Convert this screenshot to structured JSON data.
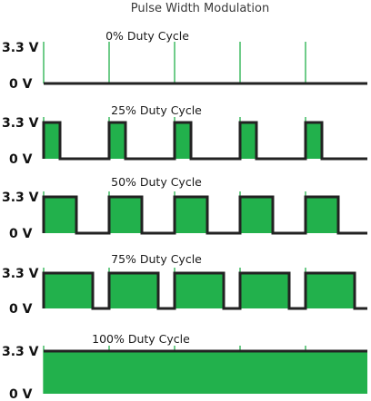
{
  "title": "Pulse Width Modulation",
  "colors": {
    "fill": "#22b14c",
    "line": "#222222",
    "period_marker": "#22b14c"
  },
  "voltage_labels": {
    "high": "3.3 V",
    "low": "0 V"
  },
  "panels": [
    {
      "label": "0% Duty Cycle",
      "duty": 0
    },
    {
      "label": "25% Duty Cycle",
      "duty": 0.25
    },
    {
      "label": "50% Duty Cycle",
      "duty": 0.5
    },
    {
      "label": "75% Duty Cycle",
      "duty": 0.75
    },
    {
      "label": "100% Duty Cycle",
      "duty": 1
    }
  ],
  "periods_shown": 5
}
